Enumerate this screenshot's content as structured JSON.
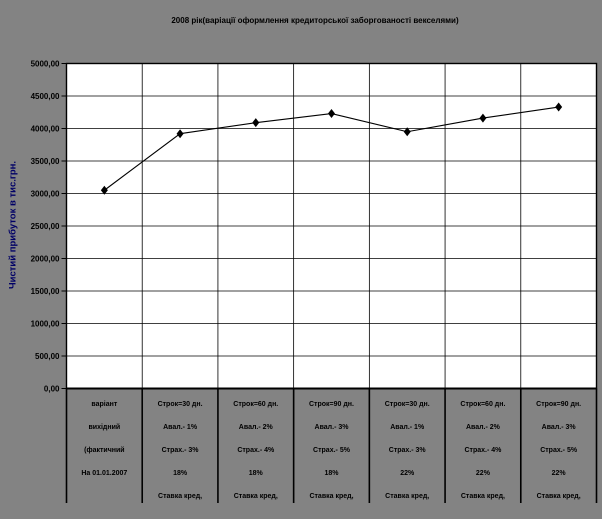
{
  "chart_data": {
    "type": "line",
    "title": "2008 рік(варіації оформлення кредиторської заборгованості векселями)",
    "ylabel": "Чистий прибуток в тис.грн.",
    "xlabel": "",
    "ylim": [
      0,
      5000
    ],
    "ytick_step": 500,
    "ytick_labels": [
      "0,00",
      "500,00",
      "1000,00",
      "1500,00",
      "2000,00",
      "2500,00",
      "3000,00",
      "3500,00",
      "4000,00",
      "4500,00",
      "5000,00"
    ],
    "grid": true,
    "legend_position": "none",
    "marker": "diamond",
    "line_color": "#000000",
    "marker_color": "#000000",
    "plot_bg": "#ffffff",
    "outer_bg": "#838383",
    "categories": [
      [
        "варіант",
        "вихідний",
        "(фактичний",
        "На 01.01.2007"
      ],
      [
        "Строк=30 дн.",
        "Авал.- 1%",
        "Страх.- 3%",
        "18%",
        "Ставка кред,"
      ],
      [
        "Строк=60 дн.",
        "Авал.- 2%",
        "Страх.- 4%",
        "18%",
        "Ставка кред,"
      ],
      [
        "Строк=90 дн.",
        "Авал.- 3%",
        "Страх.- 5%",
        "18%",
        "Ставка кред,"
      ],
      [
        "Строк=30 дн.",
        "Авал.- 1%",
        "Страх.- 3%",
        "22%",
        "Ставка кред,"
      ],
      [
        "Строк=60 дн.",
        "Авал.- 2%",
        "Страх.- 4%",
        "22%",
        "Ставка кред,"
      ],
      [
        "Строк=90 дн.",
        "Авал.- 3%",
        "Страх.- 5%",
        "22%",
        "Ставка кред,"
      ]
    ],
    "values": [
      3050,
      3920,
      4090,
      4230,
      3950,
      4160,
      4330
    ]
  }
}
